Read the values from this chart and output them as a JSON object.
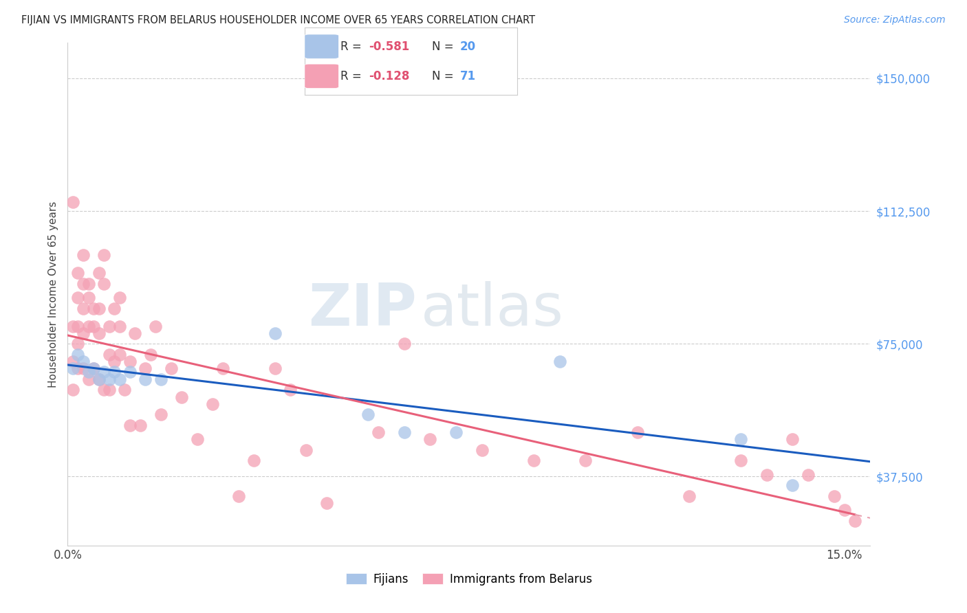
{
  "title": "FIJIAN VS IMMIGRANTS FROM BELARUS HOUSEHOLDER INCOME OVER 65 YEARS CORRELATION CHART",
  "source": "Source: ZipAtlas.com",
  "ylabel": "Householder Income Over 65 years",
  "ylabel_ticks": [
    "$37,500",
    "$75,000",
    "$112,500",
    "$150,000"
  ],
  "ylabel_values": [
    37500,
    75000,
    112500,
    150000
  ],
  "ylim": [
    18000,
    160000
  ],
  "xlim": [
    0.0,
    0.155
  ],
  "legend_blue_r": "-0.581",
  "legend_blue_n": "20",
  "legend_pink_r": "-0.128",
  "legend_pink_n": "71",
  "fijians_x": [
    0.001,
    0.002,
    0.003,
    0.004,
    0.005,
    0.006,
    0.007,
    0.008,
    0.009,
    0.01,
    0.012,
    0.015,
    0.018,
    0.04,
    0.058,
    0.065,
    0.075,
    0.095,
    0.13,
    0.14
  ],
  "fijians_y": [
    68000,
    72000,
    70000,
    67000,
    68000,
    65000,
    67000,
    65000,
    67000,
    65000,
    67000,
    65000,
    65000,
    78000,
    55000,
    50000,
    50000,
    70000,
    48000,
    35000
  ],
  "belarus_x": [
    0.001,
    0.001,
    0.001,
    0.001,
    0.002,
    0.002,
    0.002,
    0.002,
    0.002,
    0.003,
    0.003,
    0.003,
    0.003,
    0.003,
    0.004,
    0.004,
    0.004,
    0.004,
    0.005,
    0.005,
    0.005,
    0.006,
    0.006,
    0.006,
    0.006,
    0.007,
    0.007,
    0.007,
    0.008,
    0.008,
    0.008,
    0.009,
    0.009,
    0.01,
    0.01,
    0.01,
    0.011,
    0.012,
    0.012,
    0.013,
    0.014,
    0.015,
    0.016,
    0.017,
    0.018,
    0.02,
    0.022,
    0.025,
    0.028,
    0.03,
    0.033,
    0.036,
    0.04,
    0.043,
    0.046,
    0.05,
    0.06,
    0.065,
    0.07,
    0.08,
    0.09,
    0.1,
    0.11,
    0.12,
    0.13,
    0.135,
    0.14,
    0.143,
    0.148,
    0.15,
    0.152
  ],
  "belarus_y": [
    115000,
    80000,
    70000,
    62000,
    95000,
    88000,
    80000,
    75000,
    68000,
    100000,
    92000,
    85000,
    78000,
    68000,
    92000,
    88000,
    80000,
    65000,
    85000,
    80000,
    68000,
    95000,
    85000,
    78000,
    65000,
    100000,
    92000,
    62000,
    80000,
    72000,
    62000,
    85000,
    70000,
    88000,
    80000,
    72000,
    62000,
    70000,
    52000,
    78000,
    52000,
    68000,
    72000,
    80000,
    55000,
    68000,
    60000,
    48000,
    58000,
    68000,
    32000,
    42000,
    68000,
    62000,
    45000,
    30000,
    50000,
    75000,
    48000,
    45000,
    42000,
    42000,
    50000,
    32000,
    42000,
    38000,
    48000,
    38000,
    32000,
    28000,
    25000
  ],
  "blue_color": "#a8c4e8",
  "pink_color": "#f4a0b4",
  "blue_line_color": "#1a5cbf",
  "pink_line_color": "#e8607a",
  "pink_dash_color": "#e8a0b0",
  "watermark_zip": "ZIP",
  "watermark_atlas": "atlas",
  "background_color": "#ffffff",
  "grid_color": "#cccccc"
}
